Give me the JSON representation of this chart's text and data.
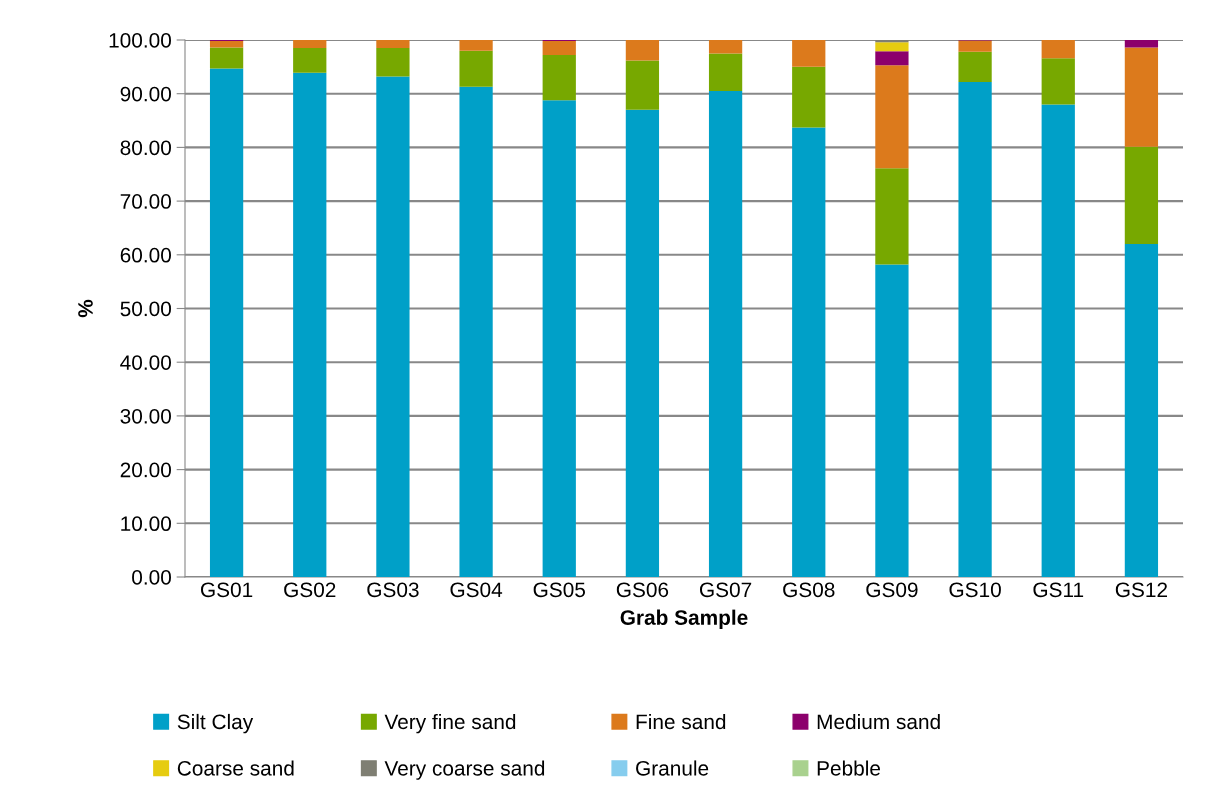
{
  "chart_data": {
    "type": "bar",
    "stacked": true,
    "xlabel": "Grab Sample",
    "ylabel": "%",
    "categories": [
      "GS01",
      "GS02",
      "GS03",
      "GS04",
      "GS05",
      "GS06",
      "GS07",
      "GS08",
      "GS09",
      "GS10",
      "GS11",
      "GS12"
    ],
    "series": [
      {
        "name": "Silt Clay",
        "color": "#00a0c8",
        "values": [
          94.7,
          93.9,
          93.2,
          91.3,
          88.8,
          87.0,
          90.5,
          83.7,
          58.2,
          92.2,
          88.0,
          62.0
        ]
      },
      {
        "name": "Very fine sand",
        "color": "#77a800",
        "values": [
          3.9,
          4.6,
          5.3,
          6.7,
          8.4,
          9.2,
          7.0,
          11.3,
          17.9,
          5.6,
          8.6,
          18.1
        ]
      },
      {
        "name": "Fine sand",
        "color": "#dc7a1c",
        "values": [
          1.2,
          1.5,
          1.5,
          2.0,
          2.6,
          3.8,
          2.5,
          5.0,
          19.2,
          2.1,
          3.4,
          18.5
        ]
      },
      {
        "name": "Medium sand",
        "color": "#8c006c",
        "values": [
          0.2,
          0,
          0,
          0,
          0.2,
          0,
          0,
          0,
          2.6,
          0.1,
          0,
          1.4
        ]
      },
      {
        "name": "Coarse sand",
        "color": "#e6cc10",
        "values": [
          0,
          0,
          0,
          0,
          0,
          0,
          0,
          0,
          1.7,
          0,
          0,
          0
        ]
      },
      {
        "name": "Very coarse sand",
        "color": "#7f7f73",
        "values": [
          0,
          0,
          0,
          0,
          0,
          0,
          0,
          0,
          0.4,
          0,
          0,
          0
        ]
      },
      {
        "name": "Granule",
        "color": "#86cdee",
        "values": [
          0,
          0,
          0,
          0,
          0,
          0,
          0,
          0,
          0,
          0,
          0,
          0
        ]
      },
      {
        "name": "Pebble",
        "color": "#a9d18e",
        "values": [
          0,
          0,
          0,
          0,
          0,
          0,
          0,
          0,
          0,
          0,
          0,
          0
        ]
      }
    ],
    "ylim": [
      0,
      100
    ],
    "yticks": [
      {
        "value": 0,
        "label": "0.00"
      },
      {
        "value": 10,
        "label": "10.00"
      },
      {
        "value": 20,
        "label": "20.00"
      },
      {
        "value": 30,
        "label": "30.00"
      },
      {
        "value": 40,
        "label": "40.00"
      },
      {
        "value": 50,
        "label": "50.00"
      },
      {
        "value": 60,
        "label": "60.00"
      },
      {
        "value": 70,
        "label": "70.00"
      },
      {
        "value": 80,
        "label": "80.00"
      },
      {
        "value": 90,
        "label": "90.00"
      },
      {
        "value": 100,
        "label": "100.00"
      }
    ],
    "grid": "y",
    "legend": "bottom"
  }
}
